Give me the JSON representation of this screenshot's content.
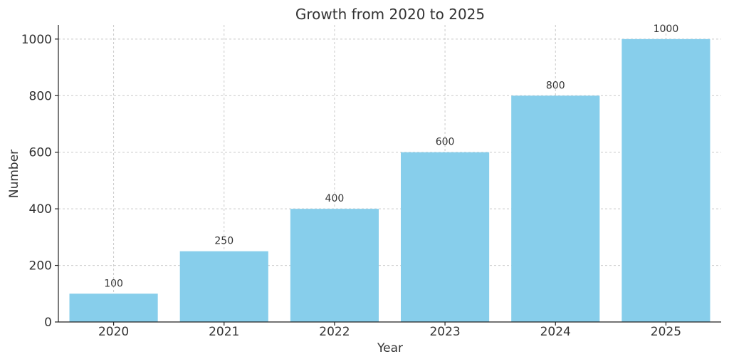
{
  "chart_data": {
    "type": "bar",
    "title": "Growth from 2020 to 2025",
    "xlabel": "Year",
    "ylabel": "Number",
    "categories": [
      "2020",
      "2021",
      "2022",
      "2023",
      "2024",
      "2025"
    ],
    "values": [
      100,
      250,
      400,
      600,
      800,
      1000
    ],
    "data_labels": [
      "100",
      "250",
      "400",
      "600",
      "800",
      "1000"
    ],
    "yticks": [
      0,
      200,
      400,
      600,
      800,
      1000
    ],
    "ylim": [
      0,
      1050
    ],
    "grid": true,
    "bar_color": "#87CEEB"
  }
}
